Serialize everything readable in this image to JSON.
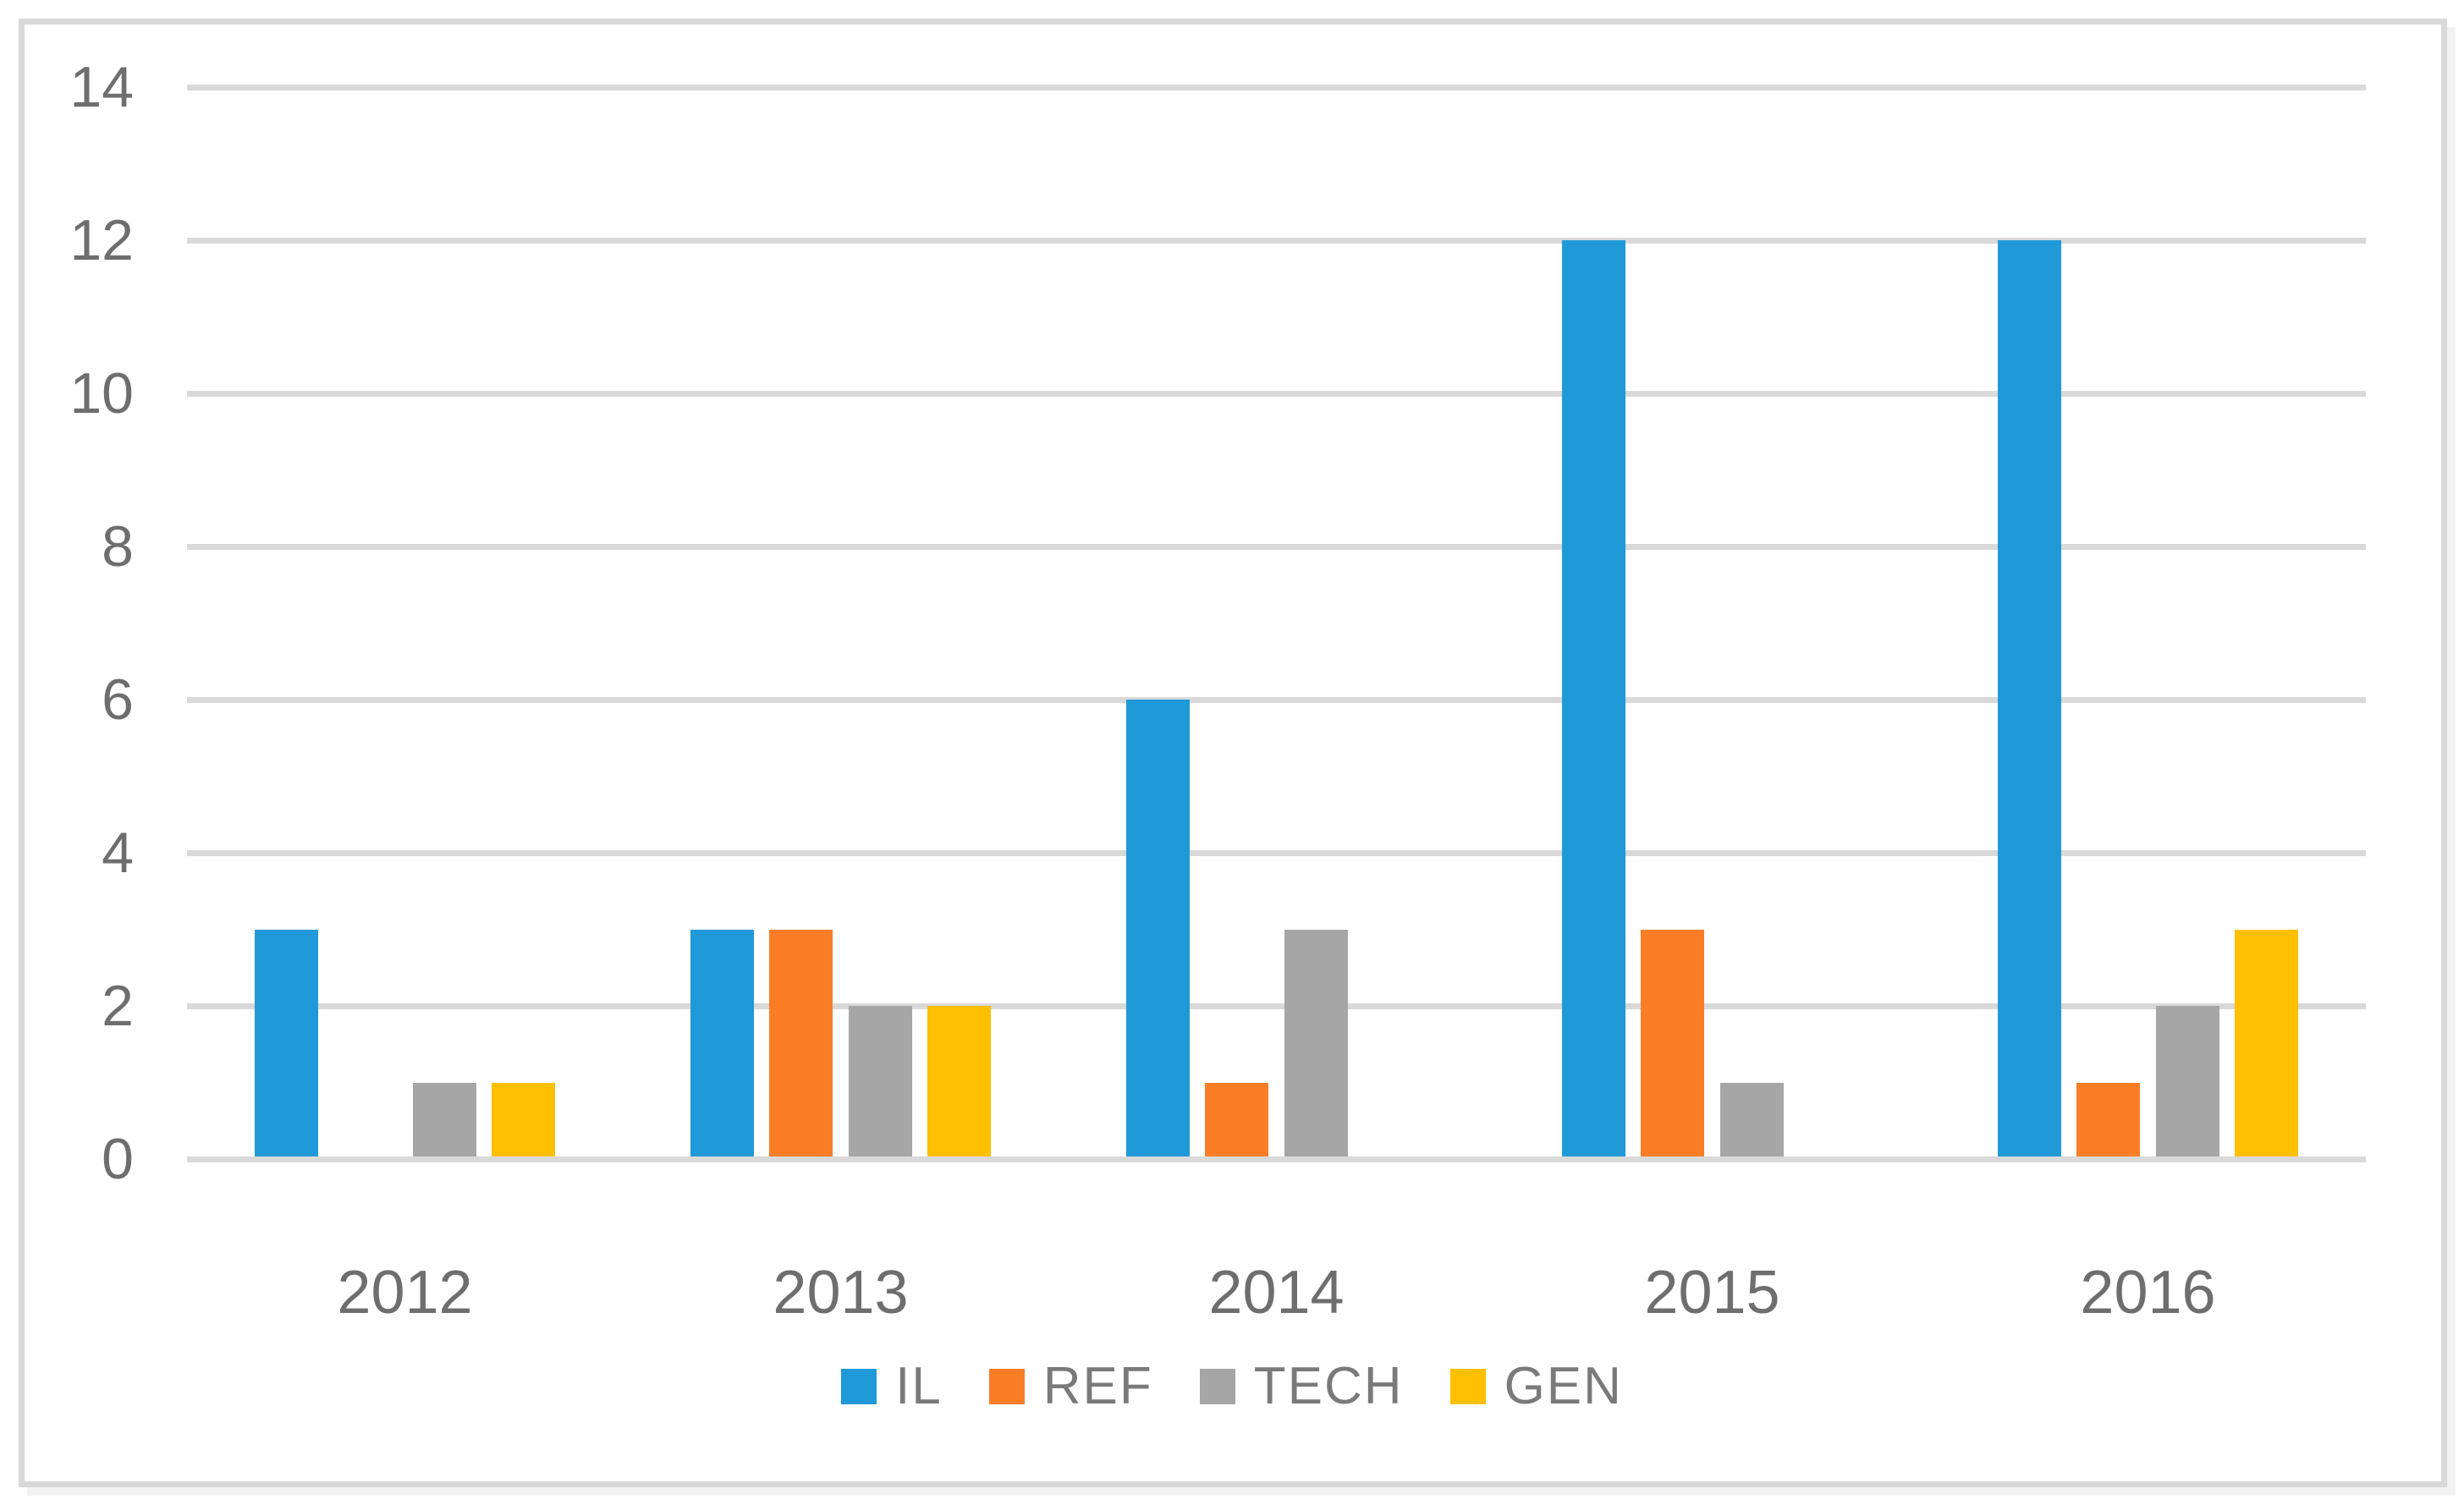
{
  "chart_data": {
    "type": "bar",
    "title": "",
    "xlabel": "",
    "ylabel": "",
    "categories": [
      "2012",
      "2013",
      "2014",
      "2015",
      "2016"
    ],
    "series": [
      {
        "name": "IL",
        "color": "#2099d8",
        "values": [
          3,
          3,
          6,
          12,
          12
        ]
      },
      {
        "name": "REF",
        "color": "#fb7d26",
        "values": [
          0,
          3,
          1,
          3,
          1
        ]
      },
      {
        "name": "TECH",
        "color": "#a6a6a6",
        "values": [
          1,
          2,
          3,
          1,
          2
        ]
      },
      {
        "name": "GEN",
        "color": "#ffc003",
        "values": [
          1,
          2,
          0,
          0,
          3
        ]
      }
    ],
    "ylim": [
      0,
      14
    ],
    "yticks": [
      0,
      2,
      4,
      6,
      8,
      10,
      12,
      14
    ],
    "grid": true,
    "legend_position": "bottom"
  },
  "colors": {
    "gridline": "#d9d9d9",
    "frame_border": "#d9d9d9",
    "axis_text": "#6e6e6e",
    "legend_text": "#7a7a7a",
    "background": "#ffffff"
  }
}
